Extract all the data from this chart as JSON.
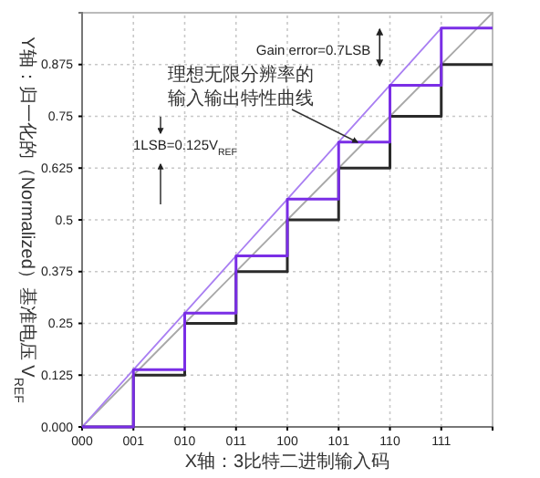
{
  "chart_data": {
    "type": "step",
    "xlabel": "X轴：3比特二进制输入码",
    "ylabel": "Y轴：归一化的（Normalized）基准电压 V$_{REF}$",
    "categories": [
      "000",
      "001",
      "010",
      "011",
      "100",
      "101",
      "110",
      "111",
      null
    ],
    "ylim": [
      0,
      1
    ],
    "yticks": [
      {
        "value": 0,
        "label": "0.000"
      },
      0.125,
      0.25,
      0.375,
      0.5,
      0.625,
      0.75,
      0.875
    ],
    "grid": true,
    "series": [
      {
        "type": "line",
        "color": "#a8a8a8",
        "values": [
          0,
          0.125,
          0.25,
          0.375,
          0.5,
          0.625,
          0.75,
          0.875,
          1
        ]
      },
      {
        "type": "line",
        "color": "#a97ff2",
        "values": [
          0,
          0.138,
          0.275,
          0.413,
          0.55,
          0.688,
          0.825,
          0.963,
          null
        ]
      },
      {
        "color": "#2a2a2a",
        "values": [
          0,
          0.125,
          0.25,
          0.375,
          0.5,
          0.625,
          0.75,
          0.875,
          0.875
        ]
      },
      {
        "color": "#7a2ee6",
        "values": [
          0,
          0.138,
          0.275,
          0.413,
          0.55,
          0.688,
          0.825,
          0.963,
          0.963
        ]
      }
    ],
    "annotations": [
      "Gain error=0.7LSB",
      "理想无限分辨率的输入输出特性曲线",
      "1LSB=0.125V$_{REF}$"
    ]
  }
}
